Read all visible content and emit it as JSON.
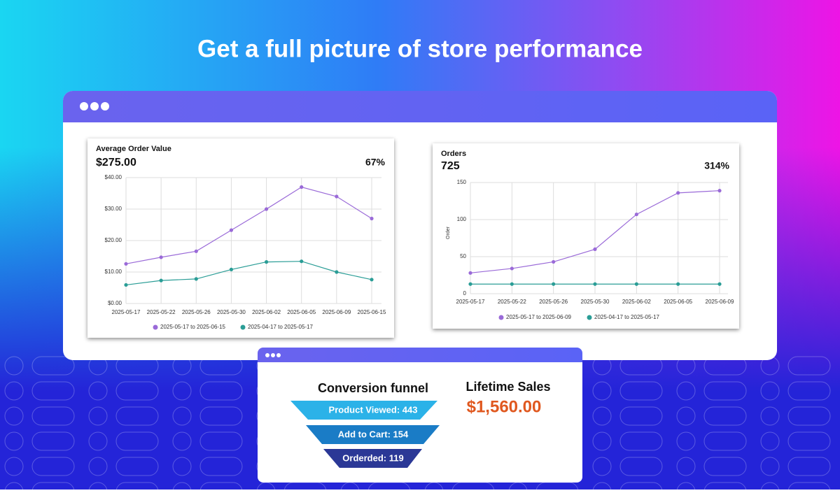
{
  "header": {
    "title": "Get a full picture of store performance"
  },
  "chart_data": [
    {
      "type": "line",
      "title": "Average Order Value",
      "summary": "$275.00",
      "change": "67%",
      "categories": [
        "2025-05-17",
        "2025-05-22",
        "2025-05-26",
        "2025-05-30",
        "2025-06-02",
        "2025-06-05",
        "2025-06-09",
        "2025-06-15"
      ],
      "series": [
        {
          "name": "2025-05-17 to 2025-06-15",
          "color": "#9a6ad8",
          "values": [
            12.6,
            14.7,
            16.6,
            23.3,
            30,
            37,
            34,
            27
          ]
        },
        {
          "name": "2025-04-17 to 2025-05-17",
          "color": "#2a9d96",
          "values": [
            5.9,
            7.3,
            7.8,
            10.8,
            13.2,
            13.4,
            10,
            7.6
          ]
        }
      ],
      "ylim": [
        0,
        40
      ],
      "yticks": [
        {
          "value": 0,
          "label": "$0.00"
        },
        {
          "value": 10,
          "label": "$10.00"
        },
        {
          "value": 20,
          "label": "$20.00"
        },
        {
          "value": 30,
          "label": "$30.00"
        },
        {
          "value": 40,
          "label": "$40.00"
        }
      ],
      "grid": true
    },
    {
      "type": "line",
      "title": "Orders",
      "summary": "725",
      "change": "314%",
      "y_label": "Order",
      "categories": [
        "2025-05-17",
        "2025-05-22",
        "2025-05-26",
        "2025-05-30",
        "2025-06-02",
        "2025-06-05",
        "2025-06-09"
      ],
      "series": [
        {
          "name": "2025-05-17 to 2025-06-09",
          "color": "#9a6ad8",
          "values": [
            28,
            34,
            43,
            60,
            107,
            136,
            139
          ]
        },
        {
          "name": "2025-04-17 to 2025-05-17",
          "color": "#2a9d96",
          "values": [
            13,
            13,
            13,
            13,
            13,
            13,
            13
          ]
        }
      ],
      "ylim": [
        0,
        150
      ],
      "yticks": [
        0,
        50,
        100,
        150
      ],
      "grid": true
    }
  ],
  "funnel": {
    "title": "Conversion funnel",
    "stages": [
      "Product Viewed: 443",
      "Add to Cart: 154",
      "Orderded: 119"
    ]
  },
  "lifetime_sales": {
    "title": "Lifetime Sales",
    "value": "$1,560.00"
  }
}
